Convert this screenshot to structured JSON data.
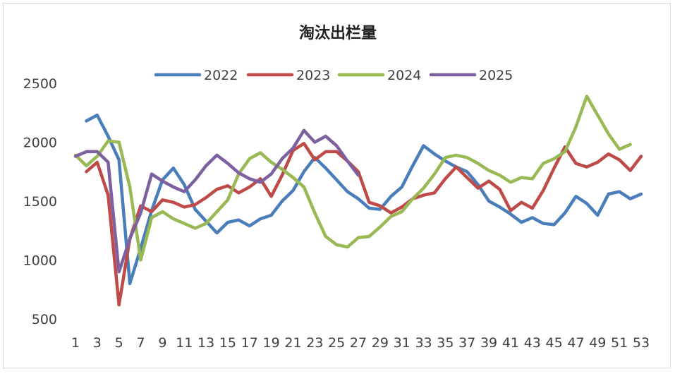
{
  "chart_data": {
    "type": "line",
    "title": "淘汰出栏量",
    "xlabel": "",
    "ylabel": "",
    "ylim": [
      500,
      2500
    ],
    "yticks": [
      500,
      1000,
      1500,
      2000,
      2500
    ],
    "xticks": [
      1,
      3,
      5,
      7,
      9,
      11,
      13,
      15,
      17,
      19,
      21,
      23,
      25,
      27,
      29,
      31,
      33,
      35,
      37,
      39,
      41,
      43,
      45,
      47,
      49,
      51,
      53
    ],
    "xlim": [
      1,
      53
    ],
    "grid": false,
    "legend_position": "top",
    "series": [
      {
        "name": "2022",
        "color": "#4a7ebb",
        "x": [
          2,
          3,
          4,
          5,
          6,
          7,
          8,
          9,
          10,
          11,
          12,
          13,
          14,
          15,
          16,
          17,
          18,
          19,
          20,
          21,
          22,
          23,
          24,
          25,
          26,
          27,
          28,
          29,
          30,
          31,
          32,
          33,
          34,
          35,
          36,
          37,
          38,
          39,
          40,
          41,
          42,
          43,
          44,
          45,
          46,
          47,
          48,
          49,
          50,
          51,
          52,
          53
        ],
        "values": [
          2180,
          2230,
          2050,
          1850,
          800,
          1100,
          1420,
          1680,
          1780,
          1640,
          1430,
          1330,
          1230,
          1320,
          1340,
          1290,
          1350,
          1380,
          1500,
          1590,
          1750,
          1870,
          1780,
          1680,
          1580,
          1520,
          1440,
          1430,
          1540,
          1620,
          1800,
          1970,
          1900,
          1840,
          1790,
          1750,
          1640,
          1500,
          1450,
          1390,
          1320,
          1360,
          1310,
          1300,
          1400,
          1540,
          1480,
          1380,
          1560,
          1580,
          1520,
          1560
        ]
      },
      {
        "name": "2023",
        "color": "#be4b48",
        "x": [
          2,
          3,
          4,
          5,
          6,
          7,
          8,
          9,
          10,
          11,
          12,
          13,
          14,
          15,
          16,
          17,
          18,
          19,
          20,
          21,
          22,
          23,
          24,
          25,
          26,
          27,
          28,
          29,
          30,
          31,
          32,
          33,
          34,
          35,
          36,
          37,
          38,
          39,
          40,
          41,
          42,
          43,
          44,
          45,
          46,
          47,
          48,
          49,
          50,
          51,
          52,
          53
        ],
        "values": [
          1750,
          1830,
          1550,
          620,
          1180,
          1460,
          1410,
          1510,
          1490,
          1450,
          1470,
          1530,
          1600,
          1630,
          1570,
          1620,
          1690,
          1540,
          1720,
          1930,
          1990,
          1850,
          1920,
          1920,
          1840,
          1750,
          1490,
          1460,
          1400,
          1450,
          1520,
          1550,
          1570,
          1690,
          1790,
          1700,
          1610,
          1670,
          1600,
          1420,
          1490,
          1440,
          1590,
          1780,
          1960,
          1820,
          1790,
          1830,
          1900,
          1850,
          1760,
          1880
        ]
      },
      {
        "name": "2024",
        "color": "#98b954",
        "x": [
          1,
          2,
          3,
          4,
          5,
          6,
          7,
          8,
          9,
          10,
          11,
          12,
          13,
          14,
          15,
          16,
          17,
          18,
          19,
          20,
          21,
          22,
          23,
          24,
          25,
          26,
          27,
          28,
          29,
          30,
          31,
          32,
          33,
          34,
          35,
          36,
          37,
          38,
          39,
          40,
          41,
          42,
          43,
          44,
          45,
          46,
          47,
          48,
          49,
          50,
          51,
          52
        ],
        "values": [
          1890,
          1800,
          1880,
          2010,
          2000,
          1620,
          1000,
          1360,
          1410,
          1350,
          1310,
          1270,
          1310,
          1410,
          1510,
          1730,
          1860,
          1910,
          1830,
          1770,
          1700,
          1620,
          1400,
          1200,
          1130,
          1110,
          1190,
          1200,
          1280,
          1370,
          1410,
          1520,
          1610,
          1730,
          1870,
          1890,
          1870,
          1820,
          1760,
          1720,
          1660,
          1700,
          1690,
          1820,
          1860,
          1920,
          2130,
          2390,
          2230,
          2070,
          1940,
          1980
        ]
      },
      {
        "name": "2025",
        "color": "#7d60a0",
        "x": [
          1,
          2,
          3,
          4,
          5,
          6,
          7,
          8,
          9,
          10,
          11,
          12,
          13,
          14,
          15,
          16,
          17,
          18,
          19,
          20,
          21,
          22,
          23,
          24,
          25,
          26,
          27
        ],
        "values": [
          1880,
          1920,
          1920,
          1830,
          900,
          1180,
          1400,
          1730,
          1670,
          1620,
          1580,
          1680,
          1800,
          1890,
          1820,
          1740,
          1690,
          1660,
          1730,
          1860,
          1950,
          2100,
          2000,
          2050,
          1970,
          1840,
          1720
        ]
      }
    ]
  }
}
